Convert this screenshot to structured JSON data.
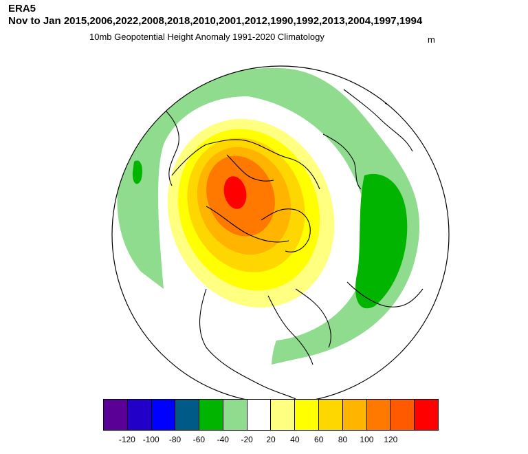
{
  "header": {
    "line1": "ERA5",
    "line2": "Nov to Jan 2015,2006,2022,2008,2018,2010,2001,2012,1990,1992,2013,2004,1997,1994",
    "subtitle": "10mb Geopotential Height Anomaly  1991-2020 Climatology",
    "units": "m"
  },
  "colors": {
    "pos20": "#ffff80",
    "pos40": "#ffff00",
    "pos60": "#ffd700",
    "pos80": "#ffb400",
    "pos100": "#ff7800",
    "pos120": "#ff5a00",
    "max": "#ff0000",
    "neg20": "#8fdc8f",
    "neg40": "#00b400"
  },
  "colorbar": {
    "boxes": [
      "#5a0096",
      "#2300c8",
      "#0000ff",
      "#005a87",
      "#00b400",
      "#8fdc8f",
      "#ffffff",
      "#ffff80",
      "#ffff00",
      "#ffd700",
      "#ffb400",
      "#ff7800",
      "#ff5a00",
      "#ff0000"
    ],
    "labels": [
      "-120",
      "-100",
      "-80",
      "-60",
      "-40",
      "-20",
      "20",
      "40",
      "60",
      "80",
      "100",
      "120"
    ]
  },
  "map": {
    "projection": "orthographic-polar-north",
    "features": [
      "warm anomaly over Arctic / Canada",
      "negative anomaly band around globe",
      "strongest negative over Eurasia"
    ]
  }
}
